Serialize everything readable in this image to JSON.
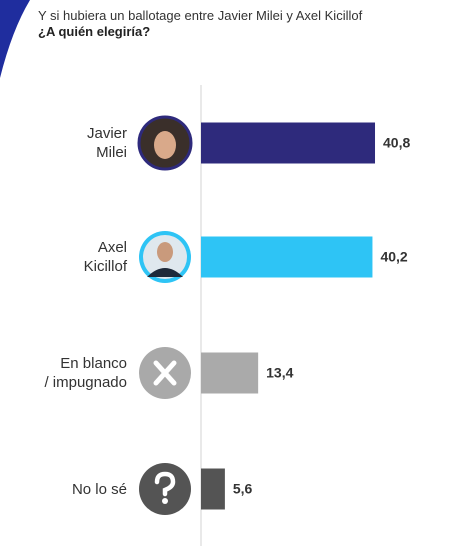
{
  "chart_data": {
    "type": "bar",
    "orientation": "horizontal",
    "title": "Y si hubiera un ballotage entre Javier Milei y Axel Kicillof",
    "subtitle": "¿A quién elegiría?",
    "categories": [
      "Javier\nMilei",
      "Axel\nKicillof",
      "En blanco\n/ impugnado",
      "No lo sé"
    ],
    "values": [
      40.8,
      40.2,
      13.4,
      5.6
    ],
    "value_labels": [
      "40,8",
      "40,2",
      "13,4",
      "5,6"
    ],
    "colors": [
      "#2e2a7c",
      "#2ec4f5",
      "#aaaaaa",
      "#545454"
    ]
  }
}
